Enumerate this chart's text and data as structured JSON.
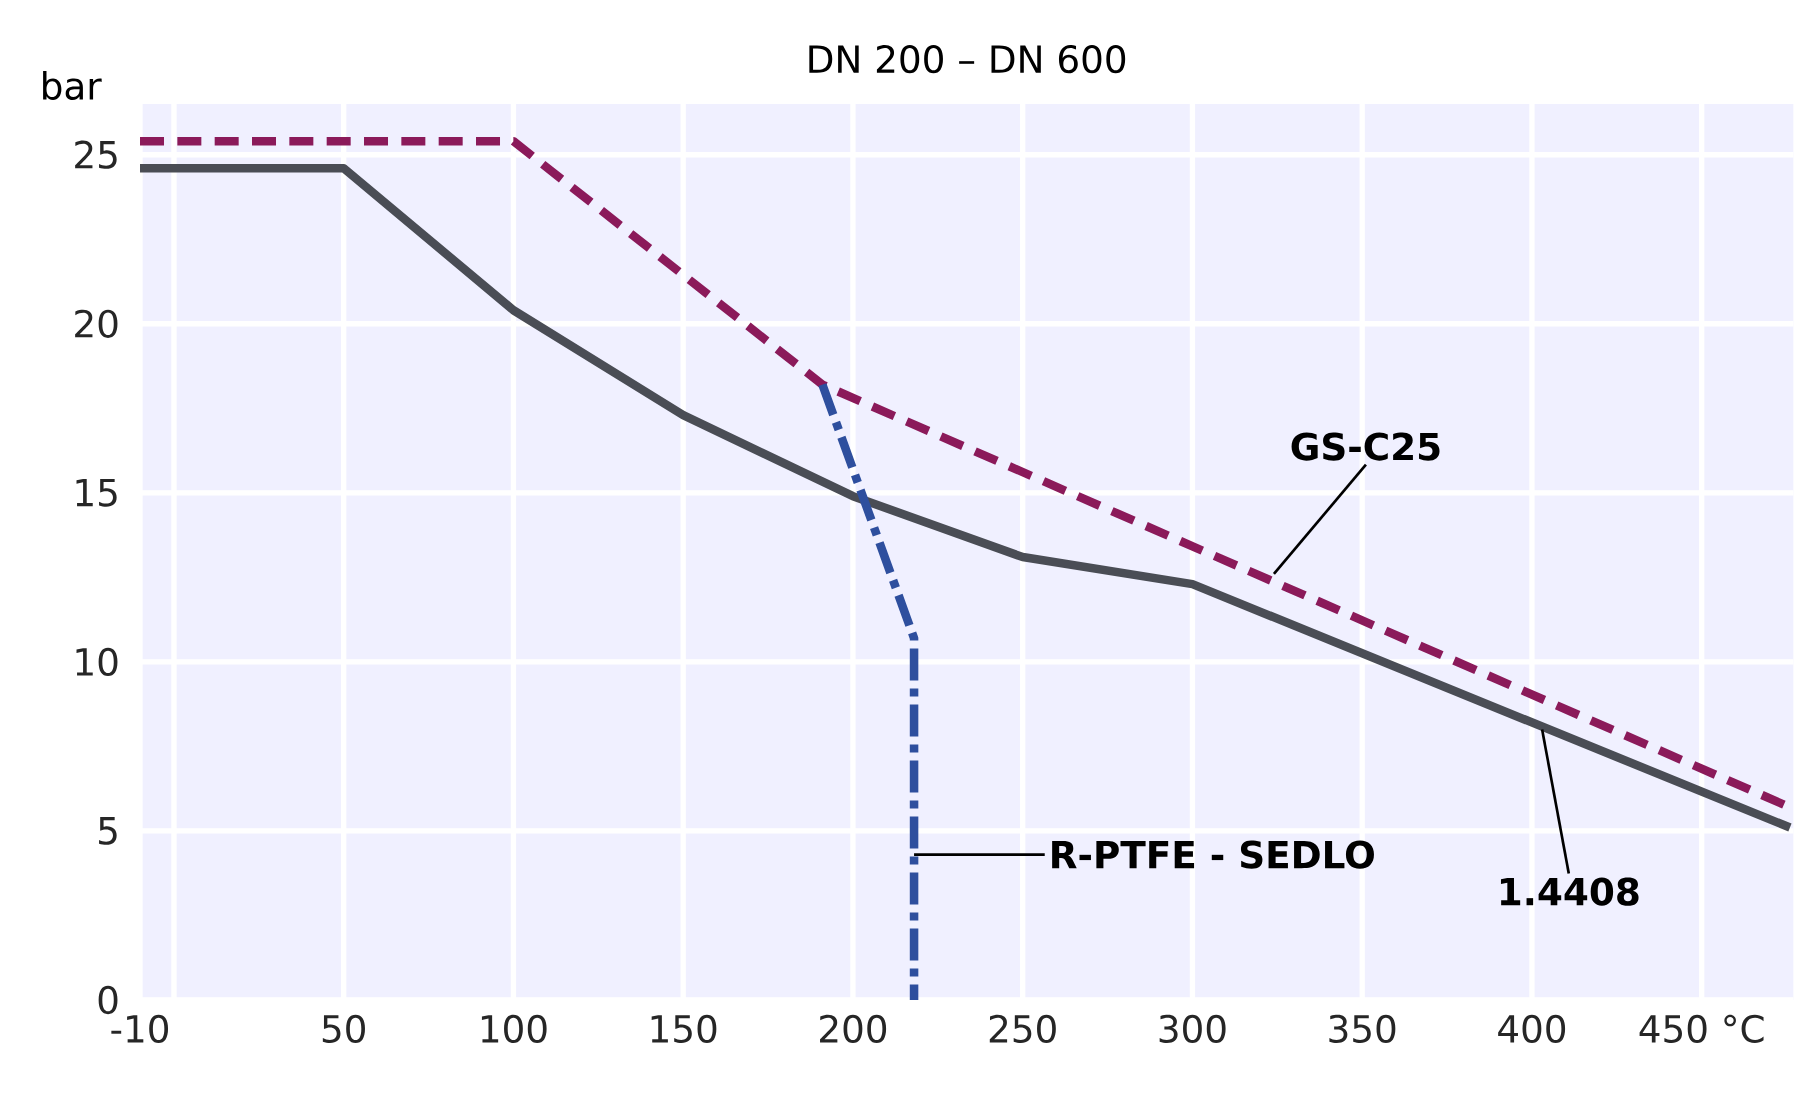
{
  "chart_data": {
    "type": "line",
    "title": "DN 200 – DN 600",
    "ylabel": "bar",
    "xlim": [
      -10,
      477
    ],
    "ylim": [
      0,
      26.5
    ],
    "xticks": [
      -10,
      {
        "value": 0,
        "label": null
      },
      50,
      100,
      150,
      200,
      250,
      300,
      350,
      400,
      {
        "value": 450,
        "label": "450 °C"
      }
    ],
    "yticks": [
      0,
      5,
      10,
      15,
      20,
      25
    ],
    "grid": true,
    "series": [
      {
        "color": "#4a4d55",
        "line_style": "solid",
        "x": [
          -10,
          50,
          100,
          150,
          200,
          250,
          300,
          476
        ],
        "values": [
          24.6,
          24.6,
          20.4,
          17.3,
          14.9,
          13.1,
          12.3,
          5.1
        ]
      },
      {
        "color": "#8b1a5a",
        "line_style": "dashed",
        "x": [
          -10,
          100,
          191,
          476
        ],
        "values": [
          25.4,
          25.4,
          18.2,
          5.7
        ]
      },
      {
        "color": "#2e4f9e",
        "line_style": "dashdot",
        "x": [
          191,
          218,
          218
        ],
        "values": [
          18.2,
          10.7,
          0
        ]
      }
    ],
    "annotations": [
      {
        "text": "GS-C25",
        "x": 324,
        "y": 12.6
      },
      {
        "text": "R-PTFE - SEDLO",
        "x": 218,
        "y": 4.3
      },
      {
        "text": "1.4408",
        "x": 403,
        "y": 8.0
      }
    ]
  }
}
